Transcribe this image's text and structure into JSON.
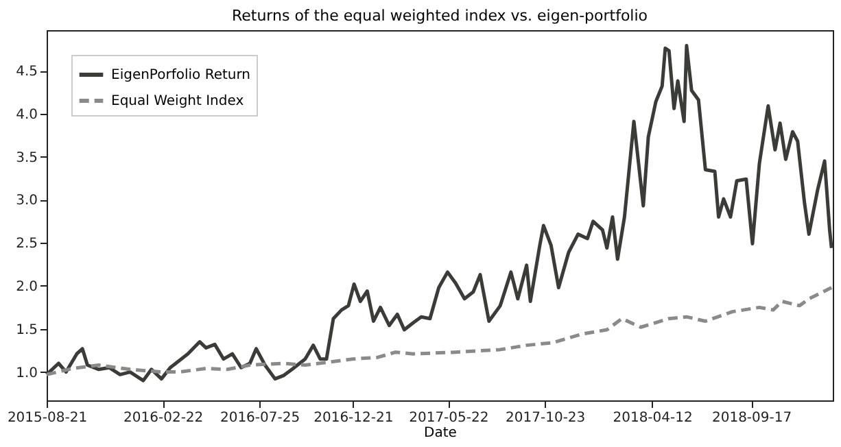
{
  "chart_data": {
    "type": "line",
    "title": "Returns of the equal weighted index vs. eigen-portfolio",
    "xlabel": "Date",
    "legend": "top left",
    "xlim": [
      "2015-08-21",
      "2019-01-25"
    ],
    "ylim": [
      0.67,
      4.97
    ],
    "xticks": [
      "2015-08-21",
      "2016-02-22",
      "2016-07-25",
      "2016-12-21",
      "2017-05-22",
      "2017-10-23",
      "2018-04-12",
      "2018-09-17"
    ],
    "yticks": [
      {
        "value": 1,
        "label": "1.0"
      },
      {
        "value": 1.5,
        "label": "1.5"
      },
      {
        "value": 2,
        "label": "2.0"
      },
      {
        "value": 2.5,
        "label": "2.5"
      },
      {
        "value": 3,
        "label": "3.0"
      },
      {
        "value": 3.5,
        "label": "3.5"
      },
      {
        "value": 4,
        "label": "4.0"
      },
      {
        "value": 4.5,
        "label": "4.5"
      }
    ],
    "series": [
      {
        "name": "EigenPorfolio Return",
        "color": "#3a3c37",
        "line_style": "solid",
        "x": [
          "2015-08-21",
          "2015-09-09",
          "2015-09-21",
          "2015-10-08",
          "2015-10-17",
          "2015-10-25",
          "2015-11-12",
          "2015-11-29",
          "2015-12-16",
          "2016-01-01",
          "2016-01-22",
          "2016-02-04",
          "2016-02-20",
          "2016-03-05",
          "2016-03-19",
          "2016-04-02",
          "2016-04-21",
          "2016-05-01",
          "2016-05-15",
          "2016-05-29",
          "2016-06-12",
          "2016-06-26",
          "2016-07-10",
          "2016-07-20",
          "2016-08-03",
          "2016-08-19",
          "2016-09-02",
          "2016-09-15",
          "2016-10-06",
          "2016-10-19",
          "2016-10-30",
          "2016-11-09",
          "2016-11-20",
          "2016-12-03",
          "2016-12-14",
          "2016-12-23",
          "2017-01-02",
          "2017-01-13",
          "2017-01-23",
          "2017-02-03",
          "2017-02-17",
          "2017-03-02",
          "2017-03-13",
          "2017-03-27",
          "2017-04-09",
          "2017-04-23",
          "2017-05-07",
          "2017-05-21",
          "2017-06-03",
          "2017-06-17",
          "2017-07-01",
          "2017-07-12",
          "2017-07-26",
          "2017-08-13",
          "2017-08-30",
          "2017-09-10",
          "2017-09-24",
          "2017-09-30",
          "2017-10-15",
          "2017-10-21",
          "2017-11-02",
          "2017-11-14",
          "2017-11-30",
          "2017-12-15",
          "2017-12-30",
          "2018-01-08",
          "2018-01-23",
          "2018-01-30",
          "2018-02-08",
          "2018-02-16",
          "2018-02-27",
          "2018-03-14",
          "2018-03-29",
          "2018-04-06",
          "2018-04-18",
          "2018-04-28",
          "2018-05-03",
          "2018-05-09",
          "2018-05-17",
          "2018-05-23",
          "2018-06-02",
          "2018-06-06",
          "2018-06-14",
          "2018-06-25",
          "2018-07-06",
          "2018-07-21",
          "2018-07-27",
          "2018-08-04",
          "2018-08-15",
          "2018-08-25",
          "2018-09-09",
          "2018-09-19",
          "2018-09-30",
          "2018-10-14",
          "2018-10-25",
          "2018-11-02",
          "2018-11-11",
          "2018-11-22",
          "2018-11-30",
          "2018-12-11",
          "2018-12-18",
          "2019-01-01",
          "2019-01-12",
          "2019-01-20",
          "2019-01-23"
        ],
        "values": [
          0.97,
          1.1,
          1.0,
          1.21,
          1.27,
          1.08,
          1.03,
          1.05,
          0.97,
          1.0,
          0.9,
          1.03,
          0.92,
          1.05,
          1.13,
          1.21,
          1.35,
          1.28,
          1.32,
          1.15,
          1.21,
          1.05,
          1.1,
          1.27,
          1.08,
          0.92,
          0.96,
          1.03,
          1.15,
          1.31,
          1.15,
          1.15,
          1.62,
          1.72,
          1.77,
          2.02,
          1.82,
          1.94,
          1.59,
          1.75,
          1.54,
          1.67,
          1.49,
          1.57,
          1.64,
          1.62,
          1.98,
          2.16,
          2.03,
          1.85,
          1.93,
          2.13,
          1.59,
          1.77,
          2.16,
          1.85,
          2.24,
          1.82,
          2.47,
          2.7,
          2.47,
          1.98,
          2.39,
          2.6,
          2.55,
          2.75,
          2.65,
          2.44,
          2.8,
          2.31,
          2.8,
          3.91,
          2.93,
          3.73,
          4.14,
          4.32,
          4.76,
          4.73,
          4.06,
          4.38,
          3.91,
          4.79,
          4.27,
          4.16,
          3.35,
          3.33,
          2.8,
          3.01,
          2.8,
          3.22,
          3.24,
          2.49,
          3.42,
          4.09,
          3.58,
          3.89,
          3.47,
          3.79,
          3.68,
          2.96,
          2.6,
          3.12,
          3.45,
          2.65,
          2.44
        ]
      },
      {
        "name": "Equal Weight Index",
        "color": "#8a8a88",
        "line_style": "dashed",
        "x": [
          "2015-08-21",
          "2015-10-01",
          "2015-11-12",
          "2016-01-01",
          "2016-02-20",
          "2016-03-19",
          "2016-05-01",
          "2016-06-04",
          "2016-07-10",
          "2016-09-02",
          "2016-10-06",
          "2016-11-09",
          "2016-12-20",
          "2017-01-30",
          "2017-02-27",
          "2017-03-27",
          "2017-06-03",
          "2017-08-13",
          "2017-09-24",
          "2017-11-05",
          "2017-12-21",
          "2018-01-30",
          "2018-02-23",
          "2018-03-25",
          "2018-05-09",
          "2018-06-06",
          "2018-07-06",
          "2018-08-18",
          "2018-09-30",
          "2018-10-22",
          "2018-11-05",
          "2018-12-03",
          "2018-12-18",
          "2019-01-23"
        ],
        "values": [
          0.97,
          1.04,
          1.08,
          1.03,
          1.0,
          1.0,
          1.04,
          1.03,
          1.08,
          1.1,
          1.08,
          1.11,
          1.15,
          1.17,
          1.23,
          1.21,
          1.23,
          1.26,
          1.31,
          1.34,
          1.44,
          1.49,
          1.62,
          1.52,
          1.62,
          1.64,
          1.59,
          1.7,
          1.75,
          1.72,
          1.82,
          1.77,
          1.85,
          1.98
        ]
      }
    ]
  }
}
